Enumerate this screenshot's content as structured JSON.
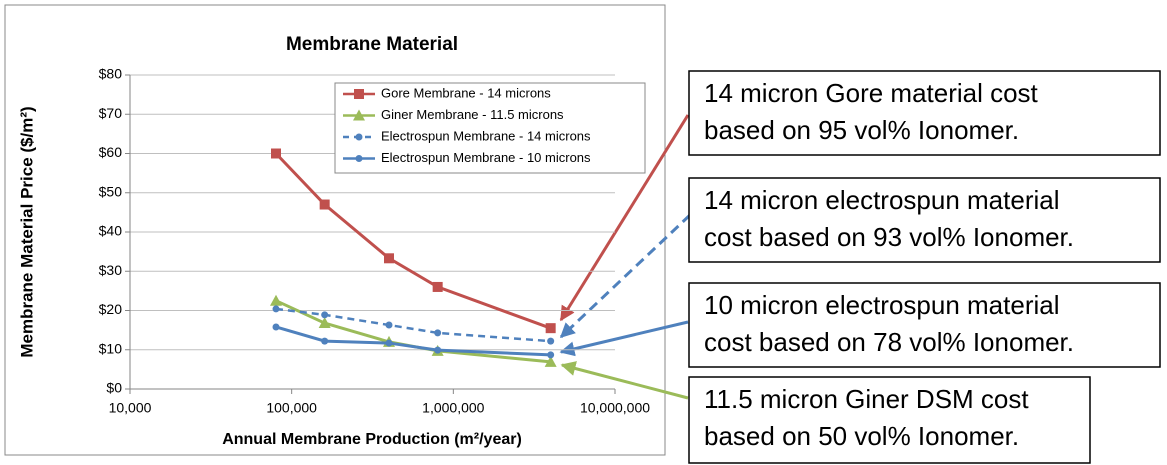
{
  "chart_data": {
    "type": "line",
    "title": "Membrane Material",
    "x_label": "Annual Membrane Production (m²/year)",
    "y_label": "Membrane Material Price ($/m²)",
    "xscale": "log",
    "xlim": [
      10000,
      10000000
    ],
    "xticks": [
      {
        "value": 10000,
        "label": "10,000"
      },
      {
        "value": 100000,
        "label": "100,000"
      },
      {
        "value": 1000000,
        "label": "1,000,000"
      },
      {
        "value": 10000000,
        "label": "10,000,000"
      }
    ],
    "ylim": [
      0,
      80
    ],
    "yticks": [
      {
        "value": 0,
        "label": "$0"
      },
      {
        "value": 10,
        "label": "$10"
      },
      {
        "value": 20,
        "label": "$20"
      },
      {
        "value": 30,
        "label": "$30"
      },
      {
        "value": 40,
        "label": "$40"
      },
      {
        "value": 50,
        "label": "$50"
      },
      {
        "value": 60,
        "label": "$60"
      },
      {
        "value": 70,
        "label": "$70"
      },
      {
        "value": 80,
        "label": "$80"
      }
    ],
    "grid": true,
    "legend": "upper right",
    "series": [
      {
        "name": "Gore Membrane - 14 microns",
        "color": "#c0504d",
        "linestyle": "solid",
        "marker": "square",
        "x": [
          80000,
          160000,
          400000,
          800000,
          4000000
        ],
        "values": [
          60,
          47,
          33.3,
          26,
          15.5
        ]
      },
      {
        "name": "Giner Membrane - 11.5 microns",
        "color": "#9bbb59",
        "linestyle": "solid",
        "marker": "triangle",
        "x": [
          80000,
          160000,
          400000,
          800000,
          4000000
        ],
        "values": [
          22.5,
          16.8,
          12,
          9.7,
          6.9
        ]
      },
      {
        "name": "Electrospun Membrane - 14 microns",
        "color": "#4f81bd",
        "linestyle": "dashed",
        "marker": "circle",
        "x": [
          80000,
          160000,
          400000,
          800000,
          4000000
        ],
        "values": [
          20.4,
          18.9,
          16.3,
          14.3,
          12.2
        ]
      },
      {
        "name": "Electrospun Membrane - 10 microns",
        "color": "#4f81bd",
        "linestyle": "solid",
        "marker": "circle",
        "x": [
          80000,
          160000,
          400000,
          800000,
          4000000
        ],
        "values": [
          15.8,
          12.2,
          11.7,
          9.9,
          8.7
        ]
      }
    ],
    "annotations": [
      {
        "lines": [
          "14 micron Gore material cost",
          "based on 95 vol% Ionomer."
        ]
      },
      {
        "lines": [
          "14 micron electrospun material",
          "cost based on 93 vol% Ionomer."
        ]
      },
      {
        "lines": [
          "10 micron electrospun material",
          "cost based on 78 vol% Ionomer."
        ]
      },
      {
        "lines": [
          "11.5 micron Giner DSM cost",
          "based on 50 vol% Ionomer."
        ]
      }
    ]
  }
}
